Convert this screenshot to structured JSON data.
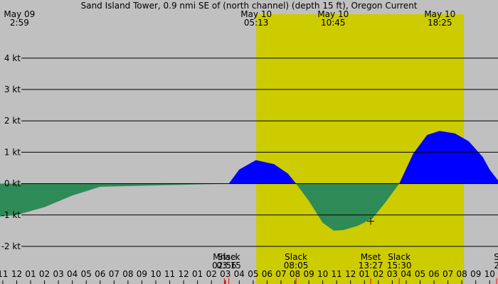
{
  "chart_data": {
    "type": "area",
    "title": "Sand Island Tower, 0.9 nmi SE of (north channel) (depth 15 ft), Oregon Current",
    "unit": "kt",
    "x_range_hours": [
      -13.2,
      22.6
    ],
    "ylim": [
      -3.2,
      5.4
    ],
    "y_ticks": [
      {
        "value": 4,
        "label": "4 kt"
      },
      {
        "value": 3,
        "label": "3 kt"
      },
      {
        "value": 2,
        "label": "2 kt"
      },
      {
        "value": 1,
        "label": "1 kt"
      },
      {
        "value": 0,
        "label": "0 kt"
      },
      {
        "value": -1,
        "label": "-1 kt"
      },
      {
        "value": -2,
        "label": "-2 kt"
      }
    ],
    "day_bands": [
      {
        "start": 5.22,
        "end": 20.15
      }
    ],
    "series": [
      {
        "values": [
          {
            "x": -13.2,
            "y": -1.05
          },
          {
            "x": -12.0,
            "y": -1.0
          },
          {
            "x": -10.0,
            "y": -0.75
          },
          {
            "x": -8.0,
            "y": -0.38
          },
          {
            "x": -6.0,
            "y": -0.1
          },
          {
            "x": 3.25,
            "y": 0.0
          },
          {
            "x": 4.0,
            "y": 0.45
          },
          {
            "x": 5.2,
            "y": 0.75
          },
          {
            "x": 6.5,
            "y": 0.62
          },
          {
            "x": 7.5,
            "y": 0.32
          },
          {
            "x": 8.08,
            "y": 0.0
          },
          {
            "x": 9.0,
            "y": -0.55
          },
          {
            "x": 10.0,
            "y": -1.25
          },
          {
            "x": 10.8,
            "y": -1.5
          },
          {
            "x": 11.5,
            "y": -1.48
          },
          {
            "x": 12.5,
            "y": -1.35
          },
          {
            "x": 13.6,
            "y": -1.1
          },
          {
            "x": 14.5,
            "y": -0.6
          },
          {
            "x": 15.5,
            "y": 0.0
          },
          {
            "x": 16.5,
            "y": 0.95
          },
          {
            "x": 17.5,
            "y": 1.55
          },
          {
            "x": 18.4,
            "y": 1.68
          },
          {
            "x": 19.5,
            "y": 1.6
          },
          {
            "x": 20.5,
            "y": 1.35
          },
          {
            "x": 21.5,
            "y": 0.85
          },
          {
            "x": 22.0,
            "y": 0.45
          },
          {
            "x": 22.6,
            "y": 0.1
          }
        ]
      }
    ],
    "top_labels": [
      {
        "x": -11.8,
        "date": "May 09",
        "time": "2:59"
      },
      {
        "x": 5.22,
        "date": "May 10",
        "time": "05:13"
      },
      {
        "x": 10.75,
        "date": "May 10",
        "time": "10:45"
      },
      {
        "x": 18.42,
        "date": "May 10",
        "time": "18:25"
      }
    ],
    "events": [
      {
        "x": 2.93,
        "name": "Mrise",
        "time": "02:56"
      },
      {
        "x": 3.25,
        "name": "Slack",
        "time": "03:15"
      },
      {
        "x": 8.08,
        "name": "Slack",
        "time": "08:05"
      },
      {
        "x": 13.45,
        "name": "Mset",
        "time": "13:27"
      },
      {
        "x": 15.5,
        "name": "Slack",
        "time": "15:30"
      },
      {
        "x": 22.5,
        "name": "S",
        "time": "2"
      }
    ],
    "x_ticks": [
      {
        "x": -13,
        "label": "11"
      },
      {
        "x": -12,
        "label": "12"
      },
      {
        "x": -11,
        "label": "01"
      },
      {
        "x": -10,
        "label": "02"
      },
      {
        "x": -9,
        "label": "03"
      },
      {
        "x": -8,
        "label": "04"
      },
      {
        "x": -7,
        "label": "05"
      },
      {
        "x": -6,
        "label": "06"
      },
      {
        "x": -5,
        "label": "07"
      },
      {
        "x": -4,
        "label": "08"
      },
      {
        "x": -3,
        "label": "09"
      },
      {
        "x": -2,
        "label": "10"
      },
      {
        "x": -1,
        "label": "11"
      },
      {
        "x": 0,
        "label": "12"
      },
      {
        "x": 1,
        "label": "01"
      },
      {
        "x": 2,
        "label": "02"
      },
      {
        "x": 3,
        "label": "03"
      },
      {
        "x": 4,
        "label": "04"
      },
      {
        "x": 5,
        "label": "05"
      },
      {
        "x": 6,
        "label": "06"
      },
      {
        "x": 7,
        "label": "07"
      },
      {
        "x": 8,
        "label": "08"
      },
      {
        "x": 9,
        "label": "09"
      },
      {
        "x": 10,
        "label": "10"
      },
      {
        "x": 11,
        "label": "11"
      },
      {
        "x": 12,
        "label": "12"
      },
      {
        "x": 13,
        "label": "01"
      },
      {
        "x": 14,
        "label": "02"
      },
      {
        "x": 15,
        "label": "03"
      },
      {
        "x": 16,
        "label": "04"
      },
      {
        "x": 17,
        "label": "05"
      },
      {
        "x": 18,
        "label": "06"
      },
      {
        "x": 19,
        "label": "07"
      },
      {
        "x": 20,
        "label": "08"
      },
      {
        "x": 21,
        "label": "09"
      },
      {
        "x": 22,
        "label": "10"
      }
    ],
    "now_marker": {
      "x": 13.45,
      "y": -1.2
    },
    "colors": {
      "background": "#c0c0c0",
      "day": "#cccc00",
      "flood": "#0000ff",
      "ebb": "#2e8b57",
      "grid": "#000000",
      "event_tick": "#ff0000"
    }
  }
}
